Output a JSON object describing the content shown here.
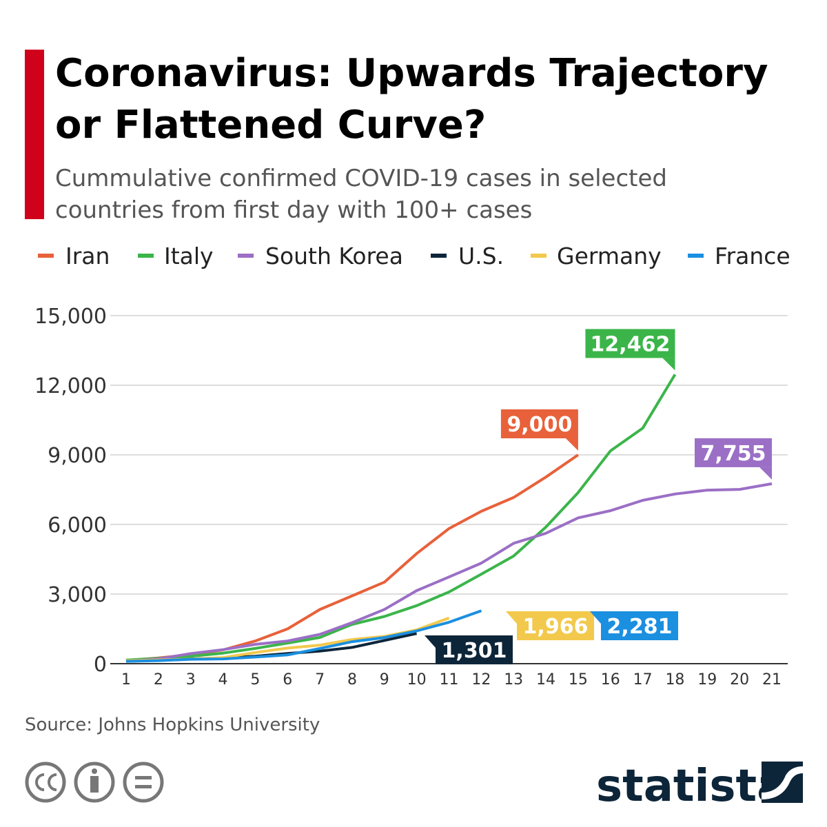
{
  "chart_data": {
    "type": "line",
    "title": [
      "Coronavirus: Upwards Trajectory",
      "or Flattened Curve?"
    ],
    "subtitle": [
      "Cummulative confirmed COVID-19 cases in selected",
      "countries from first day with 100+ cases"
    ],
    "categories": [
      1,
      2,
      3,
      4,
      5,
      6,
      7,
      8,
      9,
      10,
      11,
      12,
      13,
      14,
      15,
      16,
      17,
      18,
      19,
      20,
      21
    ],
    "series": [
      {
        "name": "Iran",
        "color": "#e8613a",
        "values": [
          140,
          245,
          388,
          593,
          978,
          1501,
          2336,
          2922,
          3513,
          4747,
          5823,
          6566,
          7161,
          8042,
          9000,
          null,
          null,
          null,
          null,
          null,
          null
        ],
        "value_labels": [
          null,
          null,
          null,
          null,
          null,
          null,
          null,
          null,
          null,
          null,
          null,
          null,
          null,
          null,
          "9,000",
          null,
          null,
          null,
          null,
          null,
          null
        ]
      },
      {
        "name": "Italy",
        "color": "#3bb54a",
        "values": [
          155,
          229,
          322,
          453,
          655,
          888,
          1128,
          1694,
          2036,
          2502,
          3089,
          3858,
          4636,
          5883,
          7375,
          9172,
          10149,
          12462,
          null,
          null,
          null
        ],
        "value_labels": [
          null,
          null,
          null,
          null,
          null,
          null,
          null,
          null,
          null,
          null,
          null,
          null,
          null,
          null,
          null,
          null,
          null,
          "12,462",
          null,
          null,
          null
        ]
      },
      {
        "name": "South Korea",
        "color": "#9b6fc6",
        "values": [
          104,
          204,
          433,
          602,
          833,
          977,
          1261,
          1766,
          2337,
          3150,
          3736,
          4335,
          5186,
          5621,
          6284,
          6593,
          7041,
          7314,
          7478,
          7513,
          7755
        ],
        "value_labels": [
          null,
          null,
          null,
          null,
          null,
          null,
          null,
          null,
          null,
          null,
          null,
          null,
          null,
          null,
          null,
          null,
          null,
          null,
          null,
          null,
          "7,755"
        ]
      },
      {
        "name": "U.S.",
        "color": "#0d2539",
        "values": [
          105,
          150,
          200,
          250,
          320,
          440,
          540,
          700,
          1000,
          1301,
          null,
          null,
          null,
          null,
          null,
          null,
          null,
          null,
          null,
          null,
          null
        ],
        "value_labels": [
          null,
          null,
          null,
          null,
          null,
          null,
          null,
          null,
          null,
          "1,301",
          null,
          null,
          null,
          null,
          null,
          null,
          null,
          null,
          null,
          null,
          null
        ]
      },
      {
        "name": "Germany",
        "color": "#f2c94c",
        "values": [
          130,
          159,
          196,
          262,
          482,
          670,
          799,
          1040,
          1176,
          1457,
          1966,
          null,
          null,
          null,
          null,
          null,
          null,
          null,
          null,
          null,
          null
        ],
        "value_labels": [
          null,
          null,
          null,
          null,
          null,
          null,
          null,
          null,
          null,
          null,
          "1,966",
          null,
          null,
          null,
          null,
          null,
          null,
          null,
          null,
          null,
          null
        ]
      },
      {
        "name": "France",
        "color": "#1b8fe0",
        "values": [
          100,
          130,
          191,
          204,
          285,
          377,
          653,
          949,
          1126,
          1412,
          1784,
          2281,
          null,
          null,
          null,
          null,
          null,
          null,
          null,
          null,
          null
        ],
        "value_labels": [
          null,
          null,
          null,
          null,
          null,
          null,
          null,
          null,
          null,
          null,
          null,
          "2,281",
          null,
          null,
          null,
          null,
          null,
          null,
          null,
          null,
          null
        ]
      }
    ],
    "ylim": [
      0,
      15000
    ],
    "yticks": [
      0,
      {
        "value": 3000,
        "label": "3,000"
      },
      {
        "value": 6000,
        "label": "6,000"
      },
      {
        "value": 9000,
        "label": "9,000"
      },
      {
        "value": 12000,
        "label": "12,000"
      },
      {
        "value": 15000,
        "label": "15,000"
      }
    ],
    "grid": true,
    "source": "Source: Johns Hopkins University",
    "logo": "statista"
  }
}
